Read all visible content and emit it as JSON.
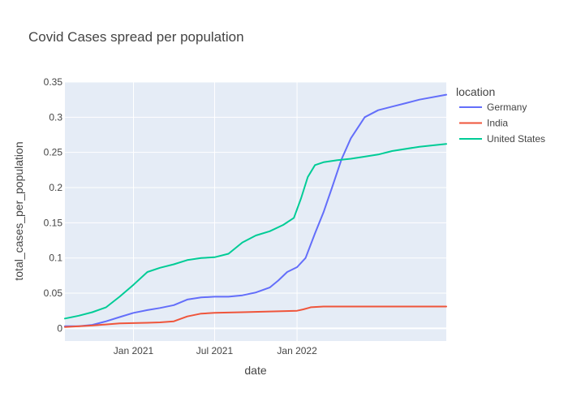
{
  "chart_data": {
    "type": "line",
    "title": "Covid Cases spread per population",
    "xlabel": "date",
    "ylabel": "total_cases_per_population",
    "x_range": [
      "2020-08-01",
      "2022-11-30"
    ],
    "ylim": [
      -0.018,
      0.35
    ],
    "x_ticks": [
      {
        "date": "2021-01-01",
        "label": "Jan 2021"
      },
      {
        "date": "2021-07-01",
        "label": "Jul 2021"
      },
      {
        "date": "2022-01-01",
        "label": "Jan 2022"
      }
    ],
    "y_ticks": [
      {
        "value": 0,
        "label": "0"
      },
      {
        "value": 0.05,
        "label": "0.05"
      },
      {
        "value": 0.1,
        "label": "0.1"
      },
      {
        "value": 0.15,
        "label": "0.15"
      },
      {
        "value": 0.2,
        "label": "0.2"
      },
      {
        "value": 0.25,
        "label": "0.25"
      },
      {
        "value": 0.3,
        "label": "0.3"
      },
      {
        "value": 0.35,
        "label": "0.35"
      }
    ],
    "grid": true,
    "legend": {
      "title": "location",
      "placement": "right"
    },
    "series": [
      {
        "name": "Germany",
        "color": "#636efa",
        "points": [
          [
            "2020-08-01",
            0.003
          ],
          [
            "2020-09-01",
            0.003
          ],
          [
            "2020-10-01",
            0.005
          ],
          [
            "2020-11-01",
            0.01
          ],
          [
            "2020-12-01",
            0.016
          ],
          [
            "2021-01-01",
            0.022
          ],
          [
            "2021-02-01",
            0.026
          ],
          [
            "2021-03-01",
            0.029
          ],
          [
            "2021-04-01",
            0.033
          ],
          [
            "2021-05-01",
            0.041
          ],
          [
            "2021-06-01",
            0.044
          ],
          [
            "2021-07-01",
            0.045
          ],
          [
            "2021-08-01",
            0.045
          ],
          [
            "2021-09-01",
            0.047
          ],
          [
            "2021-10-01",
            0.051
          ],
          [
            "2021-11-01",
            0.058
          ],
          [
            "2021-11-20",
            0.068
          ],
          [
            "2021-12-10",
            0.08
          ],
          [
            "2022-01-01",
            0.087
          ],
          [
            "2022-01-20",
            0.1
          ],
          [
            "2022-02-10",
            0.135
          ],
          [
            "2022-03-01",
            0.165
          ],
          [
            "2022-03-20",
            0.2
          ],
          [
            "2022-04-10",
            0.24
          ],
          [
            "2022-05-01",
            0.27
          ],
          [
            "2022-06-01",
            0.3
          ],
          [
            "2022-07-01",
            0.31
          ],
          [
            "2022-08-01",
            0.315
          ],
          [
            "2022-09-01",
            0.32
          ],
          [
            "2022-10-01",
            0.325
          ],
          [
            "2022-11-30",
            0.332
          ]
        ]
      },
      {
        "name": "India",
        "color": "#ef553b",
        "points": [
          [
            "2020-08-01",
            0.002
          ],
          [
            "2020-10-01",
            0.004
          ],
          [
            "2020-12-01",
            0.007
          ],
          [
            "2021-01-01",
            0.0075
          ],
          [
            "2021-02-01",
            0.008
          ],
          [
            "2021-03-01",
            0.0085
          ],
          [
            "2021-04-01",
            0.01
          ],
          [
            "2021-05-01",
            0.017
          ],
          [
            "2021-06-01",
            0.021
          ],
          [
            "2021-07-01",
            0.022
          ],
          [
            "2021-09-01",
            0.023
          ],
          [
            "2021-11-01",
            0.024
          ],
          [
            "2022-01-01",
            0.025
          ],
          [
            "2022-01-15",
            0.027
          ],
          [
            "2022-02-01",
            0.03
          ],
          [
            "2022-03-01",
            0.031
          ],
          [
            "2022-11-30",
            0.031
          ]
        ]
      },
      {
        "name": "United States",
        "color": "#00cc96",
        "points": [
          [
            "2020-08-01",
            0.014
          ],
          [
            "2020-09-01",
            0.018
          ],
          [
            "2020-10-01",
            0.023
          ],
          [
            "2020-11-01",
            0.03
          ],
          [
            "2020-12-01",
            0.045
          ],
          [
            "2021-01-01",
            0.062
          ],
          [
            "2021-02-01",
            0.08
          ],
          [
            "2021-03-01",
            0.086
          ],
          [
            "2021-04-01",
            0.091
          ],
          [
            "2021-05-01",
            0.097
          ],
          [
            "2021-06-01",
            0.1
          ],
          [
            "2021-07-01",
            0.101
          ],
          [
            "2021-08-01",
            0.106
          ],
          [
            "2021-09-01",
            0.122
          ],
          [
            "2021-10-01",
            0.132
          ],
          [
            "2021-11-01",
            0.138
          ],
          [
            "2021-12-01",
            0.147
          ],
          [
            "2021-12-25",
            0.157
          ],
          [
            "2022-01-10",
            0.185
          ],
          [
            "2022-01-25",
            0.215
          ],
          [
            "2022-02-10",
            0.232
          ],
          [
            "2022-03-01",
            0.236
          ],
          [
            "2022-04-01",
            0.239
          ],
          [
            "2022-05-01",
            0.241
          ],
          [
            "2022-06-01",
            0.244
          ],
          [
            "2022-07-01",
            0.247
          ],
          [
            "2022-08-01",
            0.252
          ],
          [
            "2022-10-01",
            0.258
          ],
          [
            "2022-11-30",
            0.262
          ]
        ]
      }
    ]
  }
}
